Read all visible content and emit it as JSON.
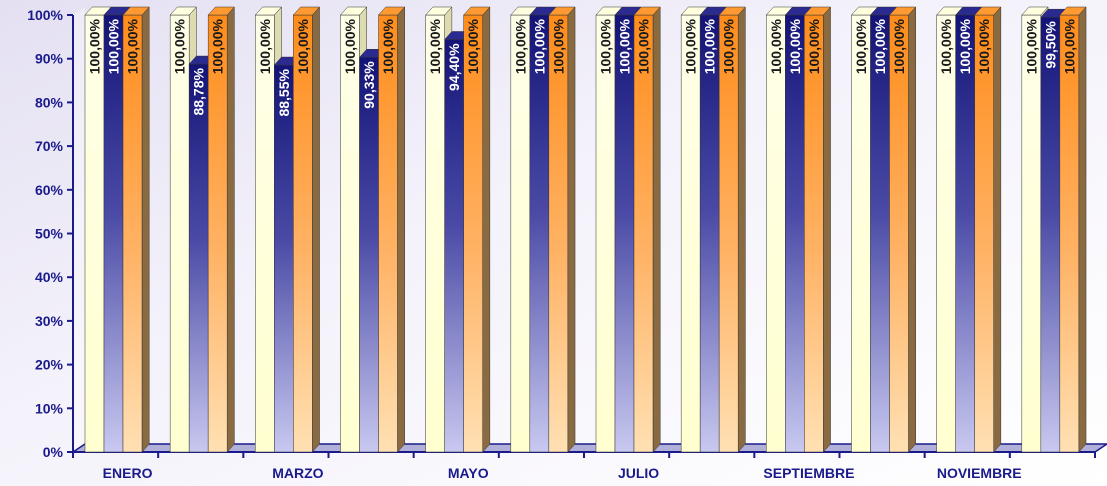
{
  "chart_data": {
    "type": "bar",
    "categories": [
      "ENERO",
      "",
      "MARZO",
      "",
      "MAYO",
      "",
      "JULIO",
      "",
      "SEPTIEMBRE",
      "",
      "NOVIEMBRE",
      ""
    ],
    "series": [
      {
        "color": "#ffffcc",
        "values": [
          100,
          100,
          100,
          100,
          100,
          100,
          100,
          100,
          100,
          100,
          100,
          100
        ],
        "labels": [
          "100,00%",
          "100,00%",
          "100,00%",
          "100,00%",
          "100,00%",
          "100,00%",
          "100,00%",
          "100,00%",
          "100,00%",
          "100,00%",
          "100,00%",
          "100,00%"
        ]
      },
      {
        "color": "#1f1f8f",
        "values": [
          100,
          88.78,
          88.55,
          90.33,
          94.4,
          100,
          100,
          100,
          100,
          100,
          100,
          99.5
        ],
        "labels": [
          "100,00%",
          "88,78%",
          "88,55%",
          "90,33%",
          "94,40%",
          "100,00%",
          "100,00%",
          "100,00%",
          "100,00%",
          "100,00%",
          "100,00%",
          "99,50%"
        ]
      },
      {
        "color": "#ff9933",
        "values": [
          100,
          100,
          100,
          100,
          100,
          100,
          100,
          100,
          100,
          100,
          100,
          100
        ],
        "labels": [
          "100,00%",
          "100,00%",
          "100,00%",
          "100,00%",
          "100,00%",
          "100,00%",
          "100,00%",
          "100,00%",
          "100,00%",
          "100,00%",
          "100,00%",
          "100,00%"
        ]
      }
    ],
    "y_ticks": [
      "0%",
      "10%",
      "20%",
      "30%",
      "40%",
      "50%",
      "60%",
      "70%",
      "80%",
      "90%",
      "100%"
    ],
    "ylim": [
      0,
      100
    ],
    "grid": false,
    "legend": "none"
  }
}
